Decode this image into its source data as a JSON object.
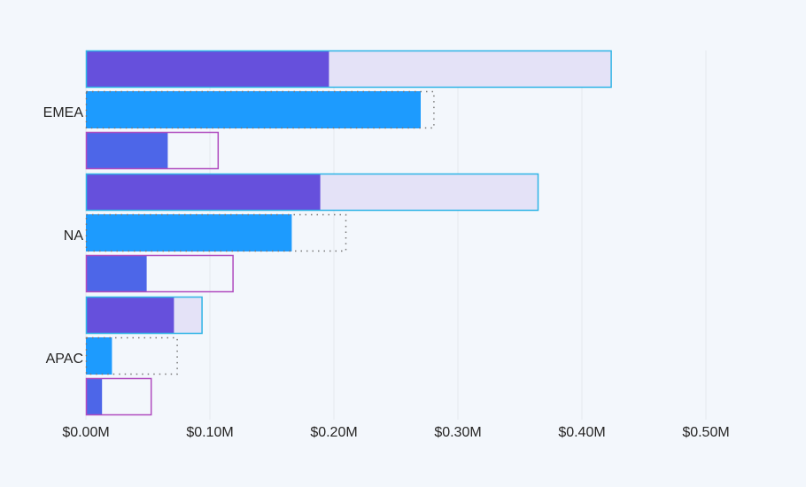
{
  "chart_data": {
    "type": "bar",
    "orientation": "horizontal",
    "categories": [
      "EMEA",
      "NA",
      "APAC"
    ],
    "x_ticks": [
      "$0.00M",
      "$0.10M",
      "$0.20M",
      "$0.30M",
      "$0.40M",
      "$0.50M"
    ],
    "xlim": [
      0,
      0.5
    ],
    "x_unit": "$M",
    "grid": true,
    "series": [
      {
        "values": [
          0.196,
          0.189,
          0.071
        ],
        "targets": [
          0.424,
          0.365,
          0.094
        ],
        "color": "#6650dc",
        "target_fill": "#e4e2f7",
        "target_border": "#2fb4e6",
        "target_style": "solid"
      },
      {
        "values": [
          0.27,
          0.166,
          0.021
        ],
        "targets": [
          0.281,
          0.21,
          0.074
        ],
        "color": "#1d9bfe",
        "target_fill": "none",
        "target_border": "#777777",
        "target_style": "dotted"
      },
      {
        "values": [
          0.066,
          0.049,
          0.013
        ],
        "targets": [
          0.107,
          0.119,
          0.053
        ],
        "color": "#4d66e8",
        "target_fill": "none",
        "target_border": "#b04bbf",
        "target_style": "solid"
      }
    ]
  }
}
